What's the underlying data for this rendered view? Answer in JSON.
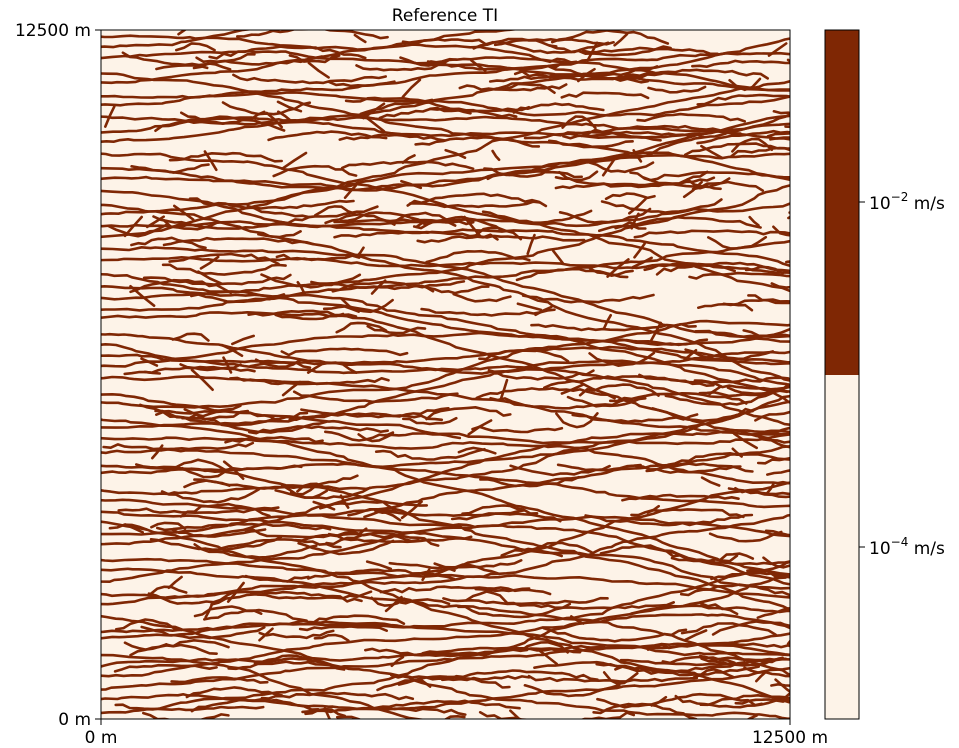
{
  "chart_data": {
    "type": "heatmap",
    "title": "Reference TI",
    "xlabel": "",
    "ylabel": "",
    "xlim": [
      0,
      12500
    ],
    "ylim": [
      0,
      12500
    ],
    "x_tick_labels": [
      "0 m",
      "12500 m"
    ],
    "y_tick_labels": [
      "0 m",
      "12500 m"
    ],
    "categories": [
      "10^-4 m/s",
      "10^-2 m/s"
    ],
    "colorbar": {
      "levels": [
        {
          "label_base": "10",
          "label_exp": "−4",
          "label_unit": " m/s",
          "color": "#fdf3e8"
        },
        {
          "label_base": "10",
          "label_exp": "−2",
          "label_unit": " m/s",
          "color": "#7f2704"
        }
      ]
    },
    "background_color": "#fdf3e8",
    "channel_color": "#7f2704",
    "grid": false,
    "colorbar_position": "right"
  }
}
